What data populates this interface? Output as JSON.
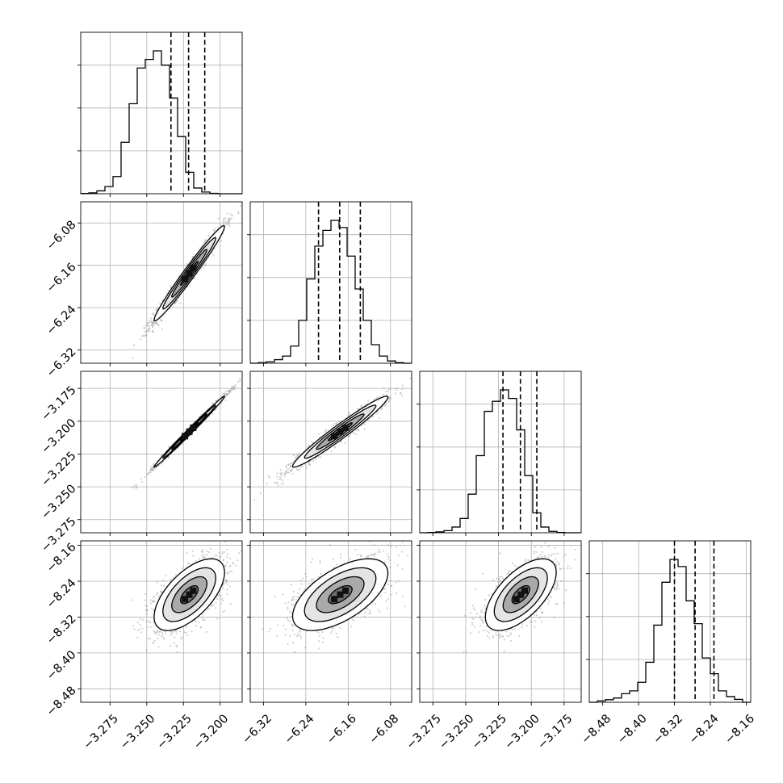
{
  "chart_data": {
    "type": "corner",
    "n_params": 4,
    "grid": true,
    "parameters": [
      {
        "index": 0,
        "range": [
          -3.295,
          -3.185
        ],
        "ticks": [
          -3.275,
          -3.25,
          -3.225,
          -3.2
        ],
        "tick_labels": [
          "−3.275",
          "−3.250",
          "−3.225",
          "−3.200"
        ],
        "mean": -3.221,
        "std": 0.012,
        "quantiles": [
          -3.2335,
          -3.2215,
          -3.2105
        ]
      },
      {
        "index": 1,
        "range": [
          -6.345,
          -6.04
        ],
        "ticks": [
          -6.32,
          -6.24,
          -6.16,
          -6.08
        ],
        "tick_labels": [
          "−6.32",
          "−6.24",
          "−6.16",
          "−6.08"
        ],
        "mean": -6.175,
        "std": 0.045,
        "quantiles": [
          -6.216,
          -6.176,
          -6.137
        ]
      },
      {
        "index": 2,
        "range": [
          -3.285,
          -3.162
        ],
        "ticks": [
          -3.275,
          -3.25,
          -3.225,
          -3.2,
          -3.175
        ],
        "tick_labels": [
          "−3.275",
          "−3.250",
          "−3.225",
          "−3.200",
          "−3.175"
        ],
        "mean": -3.208,
        "std": 0.0135,
        "quantiles": [
          -3.2216,
          -3.2083,
          -3.1958
        ]
      },
      {
        "index": 3,
        "range": [
          -8.51,
          -8.15
        ],
        "ticks": [
          -8.48,
          -8.4,
          -8.32,
          -8.24,
          -8.16
        ],
        "tick_labels": [
          "−8.48",
          "−8.40",
          "−8.32",
          "−8.24",
          "−8.16"
        ],
        "mean": -8.27,
        "std": 0.04,
        "quantiles": [
          -8.32,
          -8.274,
          -8.232
        ]
      }
    ],
    "histograms": [
      {
        "param": 0,
        "bins": 20,
        "counts": [
          0.002,
          0.006,
          0.02,
          0.05,
          0.12,
          0.36,
          0.63,
          0.88,
          0.94,
          1.0,
          0.9,
          0.67,
          0.4,
          0.15,
          0.04,
          0.012,
          0.003,
          0.0,
          0.0,
          0.0
        ]
      },
      {
        "param": 1,
        "bins": 20,
        "counts": [
          0.0,
          0.004,
          0.01,
          0.025,
          0.05,
          0.12,
          0.3,
          0.59,
          0.82,
          0.93,
          1.0,
          0.95,
          0.75,
          0.52,
          0.3,
          0.13,
          0.05,
          0.016,
          0.004,
          0.0
        ]
      },
      {
        "param": 2,
        "bins": 20,
        "counts": [
          0.0,
          0.002,
          0.006,
          0.015,
          0.04,
          0.1,
          0.27,
          0.54,
          0.85,
          0.92,
          1.0,
          0.94,
          0.72,
          0.4,
          0.14,
          0.04,
          0.01,
          0.002,
          0.0,
          0.0
        ]
      },
      {
        "param": 3,
        "bins": 20,
        "counts": [
          0.0,
          0.01,
          0.018,
          0.03,
          0.06,
          0.08,
          0.14,
          0.28,
          0.54,
          0.84,
          1.0,
          0.95,
          0.71,
          0.55,
          0.31,
          0.2,
          0.08,
          0.04,
          0.02,
          0.0
        ]
      }
    ],
    "pairs": [
      {
        "x": 0,
        "y": 1,
        "correlation": 0.98
      },
      {
        "x": 0,
        "y": 2,
        "correlation": 0.995
      },
      {
        "x": 1,
        "y": 2,
        "correlation": 0.97
      },
      {
        "x": 0,
        "y": 3,
        "correlation": 0.62
      },
      {
        "x": 1,
        "y": 3,
        "correlation": 0.6
      },
      {
        "x": 2,
        "y": 3,
        "correlation": 0.62
      }
    ],
    "contour_levels_sigma": [
      0.5,
      1.0,
      1.5,
      2.0
    ],
    "colors": {
      "hist": "#000000",
      "points": "#9a9a9a",
      "grid": "#b0b0b0"
    }
  }
}
